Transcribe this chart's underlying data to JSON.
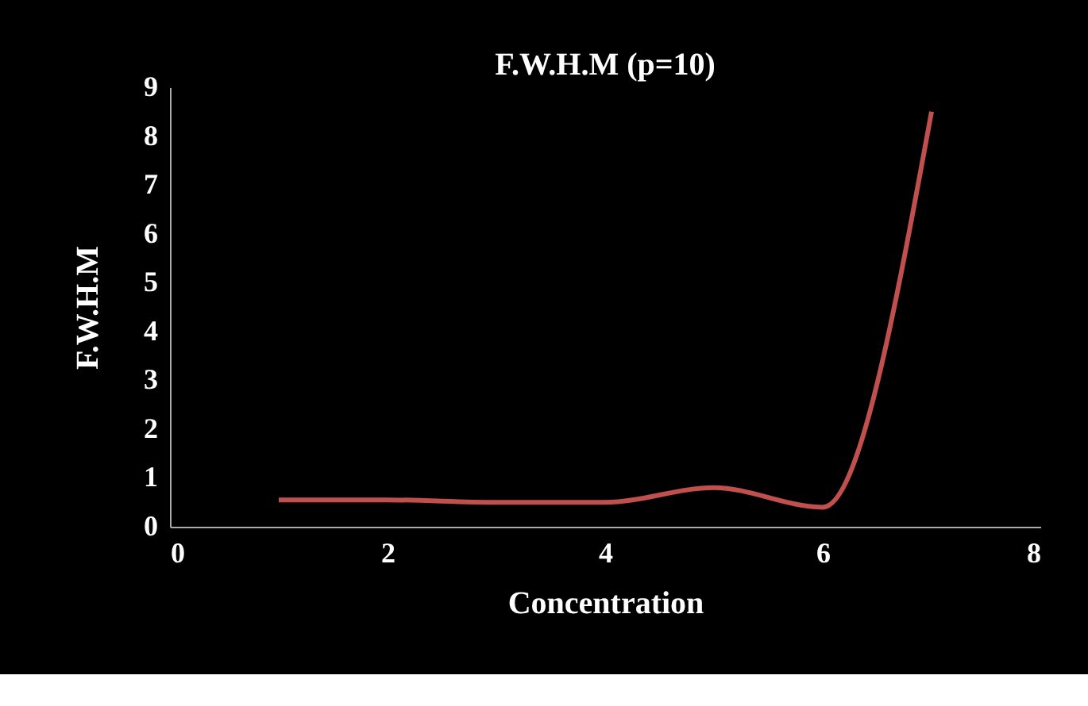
{
  "chart_data": {
    "type": "line",
    "title": "F.W.H.M (p=10)",
    "xlabel": "Concentration",
    "ylabel": "F.W.H.M",
    "x": [
      1,
      2,
      3,
      4,
      5,
      6,
      7
    ],
    "series": [
      {
        "color": "#c0504d",
        "values": [
          0.55,
          0.55,
          0.5,
          0.5,
          0.8,
          0.4,
          8.5
        ]
      }
    ],
    "xlim": [
      0,
      8
    ],
    "xticks": [
      0,
      2,
      4,
      6,
      8
    ],
    "ylim": [
      0,
      9
    ],
    "yticks": [
      0,
      1,
      2,
      3,
      4,
      5,
      6,
      7,
      8,
      9
    ],
    "grid": false,
    "marker": "none",
    "line_style": "solid"
  }
}
